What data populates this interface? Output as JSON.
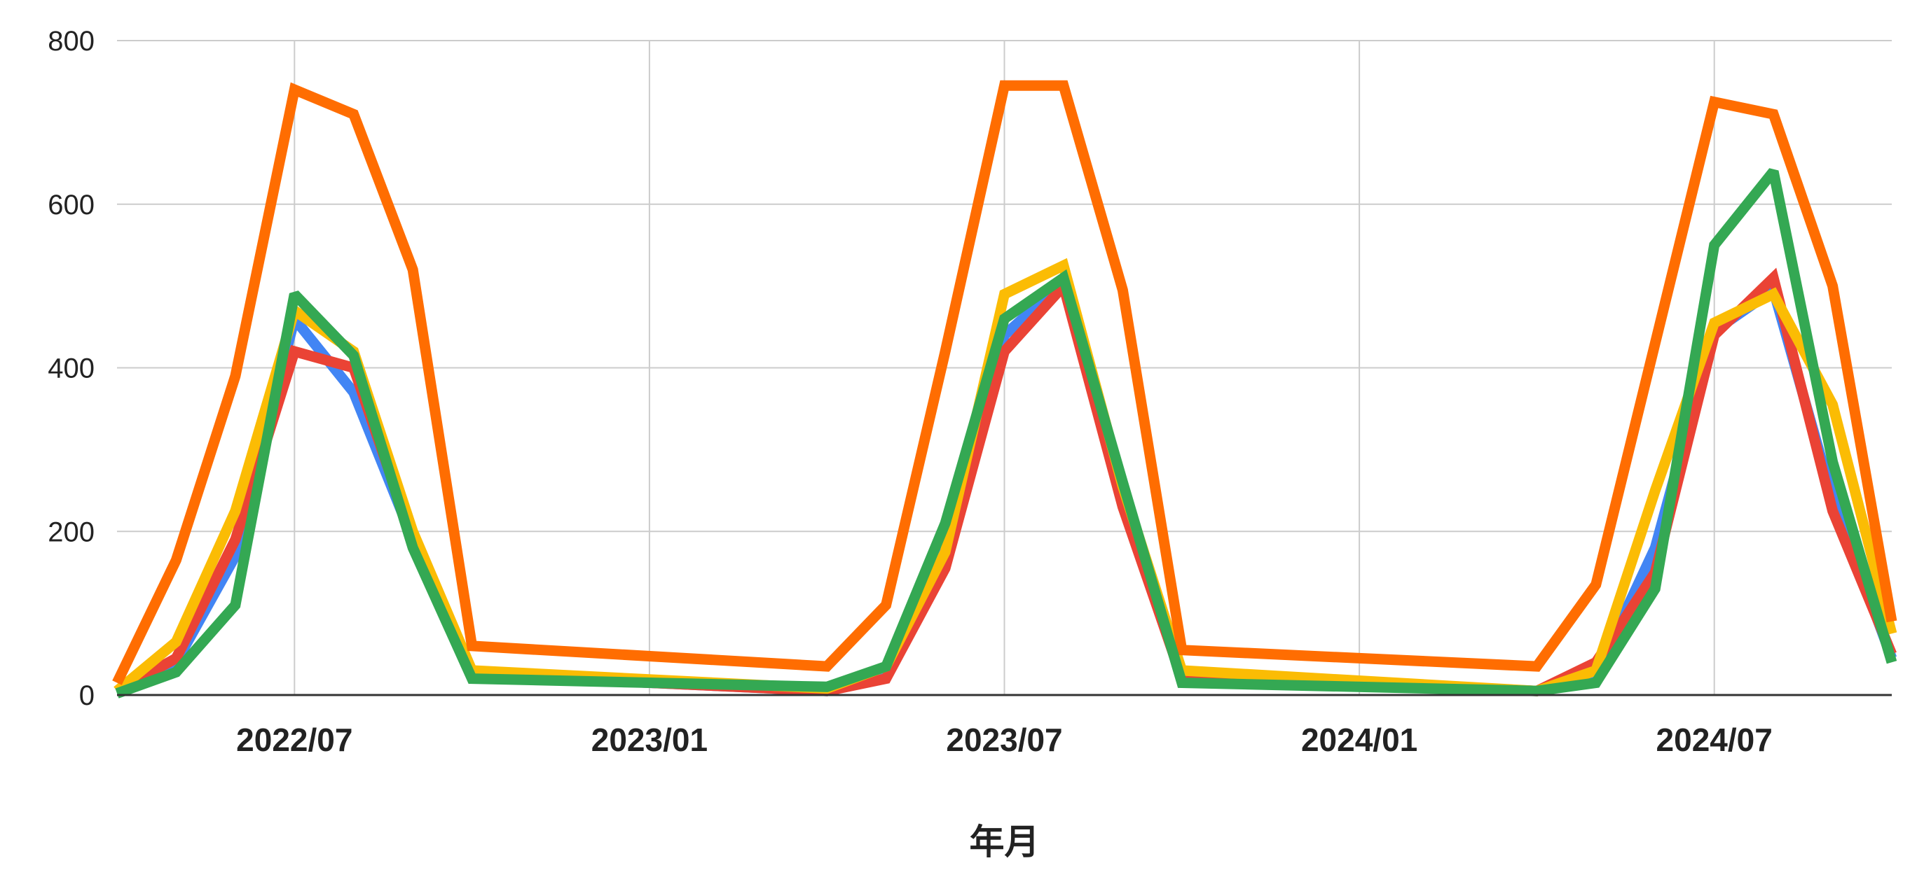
{
  "chart_data": {
    "type": "line",
    "xlabel": "年月",
    "ylabel": "",
    "x_range": [
      "2022/04",
      "2024/10"
    ],
    "ylim": [
      0,
      800
    ],
    "y_ticks": [
      0,
      200,
      400,
      600,
      800
    ],
    "x_ticks": [
      {
        "label": "2022/07",
        "date": "2022/07"
      },
      {
        "label": "2023/01",
        "date": "2023/01"
      },
      {
        "label": "2023/07",
        "date": "2023/07"
      },
      {
        "label": "2024/01",
        "date": "2024/01"
      },
      {
        "label": "2024/07",
        "date": "2024/07"
      }
    ],
    "grid": true,
    "legend": "none",
    "series": [
      {
        "color": "#4285f4",
        "points": [
          [
            "2022/04",
            5
          ],
          [
            "2022/05",
            40
          ],
          [
            "2022/06",
            170
          ],
          [
            "2022/07",
            460
          ],
          [
            "2022/08",
            370
          ],
          [
            "2022/09",
            190
          ],
          [
            "2022/10",
            25
          ],
          [
            "2023/04",
            5
          ],
          [
            "2023/05",
            25
          ],
          [
            "2023/06",
            180
          ],
          [
            "2023/07",
            440
          ],
          [
            "2023/08",
            505
          ],
          [
            "2023/09",
            240
          ],
          [
            "2023/10",
            25
          ],
          [
            "2024/04",
            5
          ],
          [
            "2024/05",
            25
          ],
          [
            "2024/06",
            180
          ],
          [
            "2024/07",
            445
          ],
          [
            "2024/08",
            495
          ],
          [
            "2024/09",
            240
          ],
          [
            "2024/10",
            45
          ]
        ]
      },
      {
        "color": "#ea4335",
        "points": [
          [
            "2022/04",
            5
          ],
          [
            "2022/05",
            45
          ],
          [
            "2022/06",
            190
          ],
          [
            "2022/07",
            420
          ],
          [
            "2022/08",
            400
          ],
          [
            "2022/09",
            190
          ],
          [
            "2022/10",
            25
          ],
          [
            "2023/04",
            5
          ],
          [
            "2023/05",
            20
          ],
          [
            "2023/06",
            155
          ],
          [
            "2023/07",
            420
          ],
          [
            "2023/08",
            500
          ],
          [
            "2023/09",
            230
          ],
          [
            "2023/10",
            20
          ],
          [
            "2024/04",
            5
          ],
          [
            "2024/05",
            40
          ],
          [
            "2024/06",
            150
          ],
          [
            "2024/07",
            440
          ],
          [
            "2024/08",
            510
          ],
          [
            "2024/09",
            225
          ],
          [
            "2024/10",
            50
          ]
        ]
      },
      {
        "color": "#fbbc04",
        "points": [
          [
            "2022/04",
            5
          ],
          [
            "2022/05",
            65
          ],
          [
            "2022/06",
            225
          ],
          [
            "2022/07",
            470
          ],
          [
            "2022/08",
            420
          ],
          [
            "2022/09",
            200
          ],
          [
            "2022/10",
            30
          ],
          [
            "2023/04",
            8
          ],
          [
            "2023/05",
            35
          ],
          [
            "2023/06",
            175
          ],
          [
            "2023/07",
            490
          ],
          [
            "2023/08",
            525
          ],
          [
            "2023/09",
            255
          ],
          [
            "2023/10",
            30
          ],
          [
            "2024/04",
            5
          ],
          [
            "2024/05",
            30
          ],
          [
            "2024/06",
            250
          ],
          [
            "2024/07",
            455
          ],
          [
            "2024/08",
            490
          ],
          [
            "2024/09",
            355
          ],
          [
            "2024/10",
            75
          ]
        ]
      },
      {
        "color": "#ff6d01",
        "points": [
          [
            "2022/04",
            15
          ],
          [
            "2022/05",
            165
          ],
          [
            "2022/06",
            390
          ],
          [
            "2022/07",
            740
          ],
          [
            "2022/08",
            710
          ],
          [
            "2022/09",
            520
          ],
          [
            "2022/10",
            60
          ],
          [
            "2023/04",
            35
          ],
          [
            "2023/05",
            110
          ],
          [
            "2023/06",
            420
          ],
          [
            "2023/07",
            745
          ],
          [
            "2023/08",
            745
          ],
          [
            "2023/09",
            495
          ],
          [
            "2023/10",
            55
          ],
          [
            "2024/04",
            35
          ],
          [
            "2024/05",
            135
          ],
          [
            "2024/06",
            430
          ],
          [
            "2024/07",
            725
          ],
          [
            "2024/08",
            710
          ],
          [
            "2024/09",
            500
          ],
          [
            "2024/10",
            90
          ]
        ]
      },
      {
        "color": "#34a853",
        "points": [
          [
            "2022/04",
            2
          ],
          [
            "2022/05",
            28
          ],
          [
            "2022/06",
            110
          ],
          [
            "2022/07",
            490
          ],
          [
            "2022/08",
            415
          ],
          [
            "2022/09",
            180
          ],
          [
            "2022/10",
            20
          ],
          [
            "2023/04",
            10
          ],
          [
            "2023/05",
            35
          ],
          [
            "2023/06",
            210
          ],
          [
            "2023/07",
            460
          ],
          [
            "2023/08",
            510
          ],
          [
            "2023/09",
            260
          ],
          [
            "2023/10",
            15
          ],
          [
            "2024/04",
            5
          ],
          [
            "2024/05",
            15
          ],
          [
            "2024/06",
            130
          ],
          [
            "2024/07",
            550
          ],
          [
            "2024/08",
            640
          ],
          [
            "2024/09",
            285
          ],
          [
            "2024/10",
            40
          ]
        ]
      }
    ]
  }
}
